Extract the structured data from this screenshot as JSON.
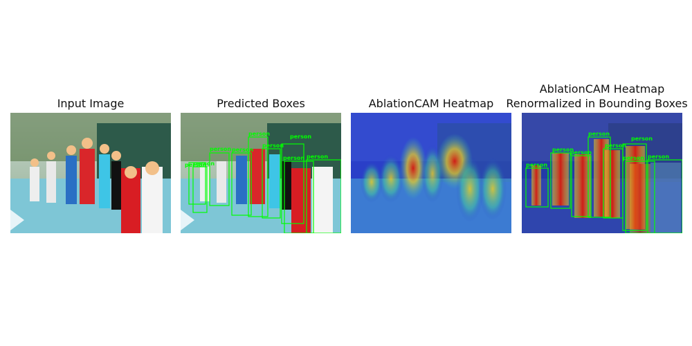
{
  "figure": {
    "panels": [
      {
        "title": "Input Image"
      },
      {
        "title": "Predicted Boxes"
      },
      {
        "title": "AblationCAM Heatmap"
      },
      {
        "title_lines": [
          "AblationCAM Heatmap",
          "Renormalized in Bounding Boxes"
        ]
      }
    ],
    "box_label": "person",
    "colors": {
      "box": "#00ff00",
      "sky": "#9fb7c0",
      "court": "#7ec6d6",
      "fence": "#2d5a4a",
      "hedge": "#3e6a3a",
      "heat_low": "#1f35c8",
      "heat_mid": "#f2d21d",
      "heat_high": "#d81a0f"
    }
  }
}
